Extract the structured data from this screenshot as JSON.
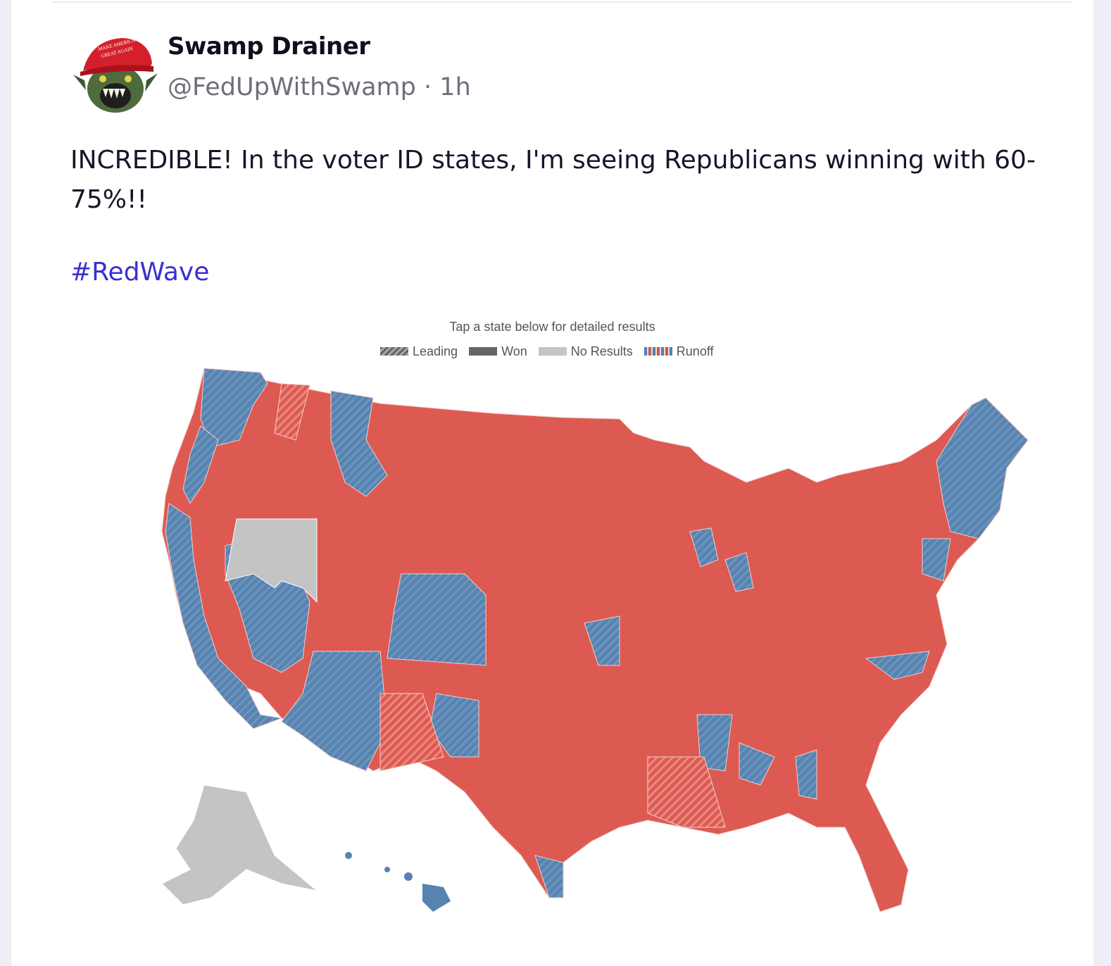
{
  "post": {
    "display_name": "Swamp Drainer",
    "handle": "@FedUpWithSwamp",
    "separator": "·",
    "time": "1h",
    "text": "INCREDIBLE! In the voter ID states, I'm seeing Republicans winning with 60-75%!!",
    "hashtag": "#RedWave"
  },
  "avatar": {
    "hat_text_1": "MAKE AMERICA",
    "hat_text_2": "GREAT AGAIN",
    "icon": "swamp-monster-avatar"
  },
  "map": {
    "caption": "Tap a state below for detailed results",
    "legend": [
      {
        "key": "leading",
        "label": "Leading"
      },
      {
        "key": "won",
        "label": "Won"
      },
      {
        "key": "none",
        "label": "No Results"
      },
      {
        "key": "runoff",
        "label": "Runoff"
      }
    ],
    "colors": {
      "republican": "#dd5a52",
      "democrat": "#5783b0",
      "no_results": "#c4c4c4",
      "border": "#f2d0cc"
    }
  }
}
